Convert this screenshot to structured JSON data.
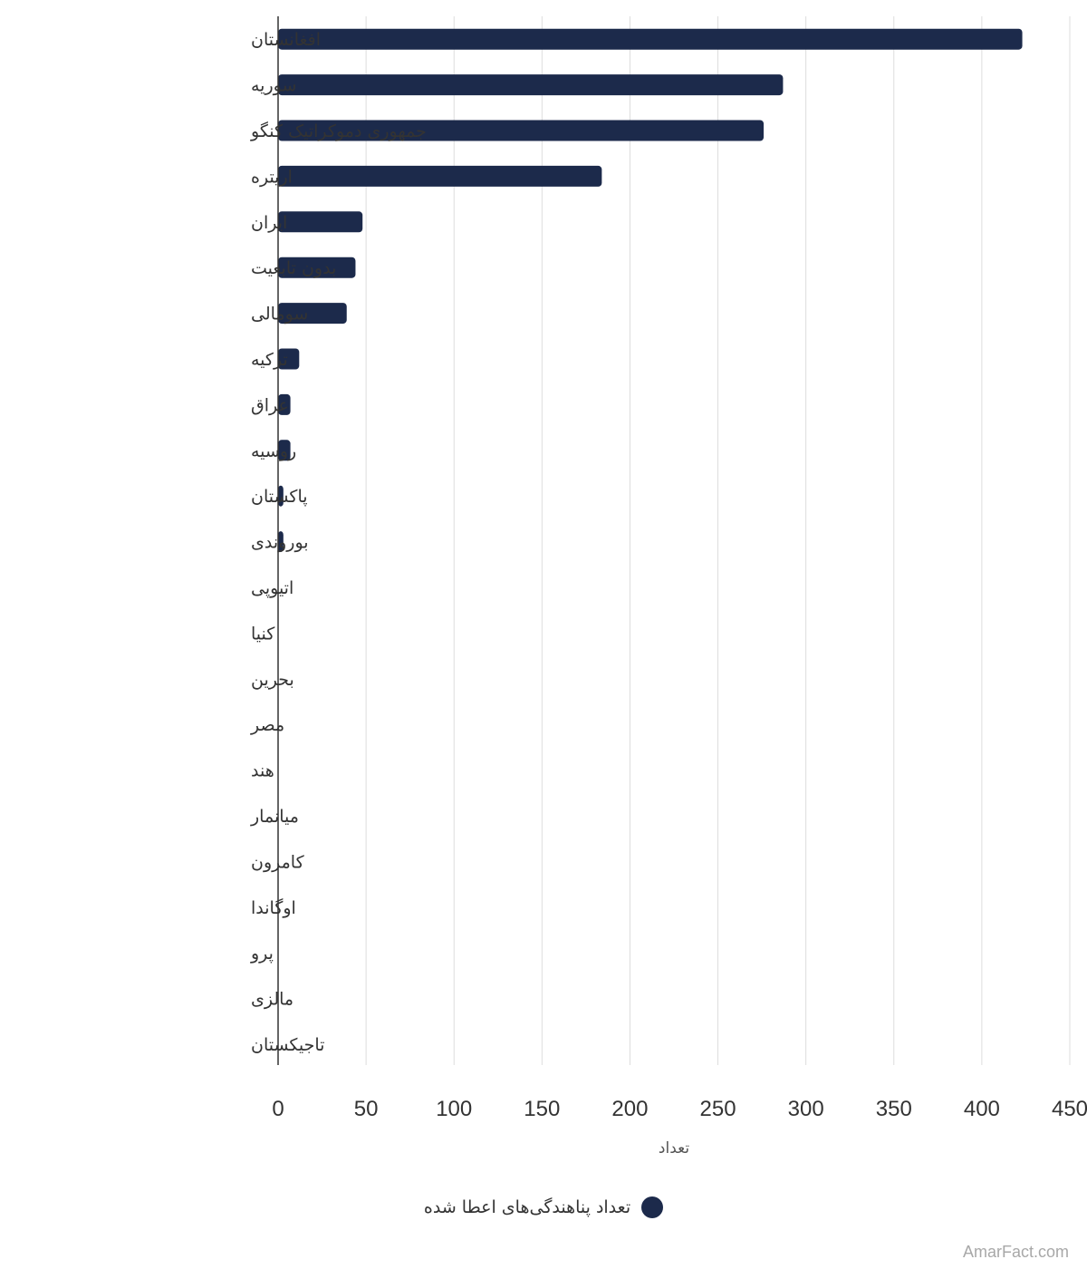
{
  "chart_data": {
    "type": "bar",
    "orientation": "horizontal",
    "categories": [
      "افغانستان",
      "سوریه",
      "جمهوری دموکراتیک کنگو",
      "اریتره",
      "ایران",
      "بدون تابعیت",
      "سومالی",
      "ترکیه",
      "عراق",
      "روسیه",
      "پاکستان",
      "بوروندی",
      "اتیوپی",
      "کنیا",
      "بحرین",
      "مصر",
      "هند",
      "میانمار",
      "کامرون",
      "اوگاندا",
      "پرو",
      "مالزی",
      "تاجیکستان"
    ],
    "series": [
      {
        "name": "تعداد پناهندگی‌های اعطا شده",
        "values": [
          423,
          287,
          276,
          184,
          48,
          44,
          39,
          12,
          7,
          7,
          3,
          3,
          0,
          0,
          0,
          0,
          0,
          0,
          0,
          0,
          0,
          0,
          0
        ]
      }
    ],
    "xlabel": "تعداد",
    "ylabel": "",
    "xlim": [
      0,
      450
    ],
    "xticks": [
      0,
      50,
      100,
      150,
      200,
      250,
      300,
      350,
      400,
      450
    ],
    "grid": "vertical",
    "legend_position": "bottom",
    "colors": {
      "bar": "#1c2a4b",
      "grid": "#dddddd",
      "axis": "#333333"
    }
  },
  "legend": {
    "label": "تعداد پناهندگی‌های اعطا شده",
    "color": "#1c2a4b"
  },
  "watermark": "AmarFact.com"
}
